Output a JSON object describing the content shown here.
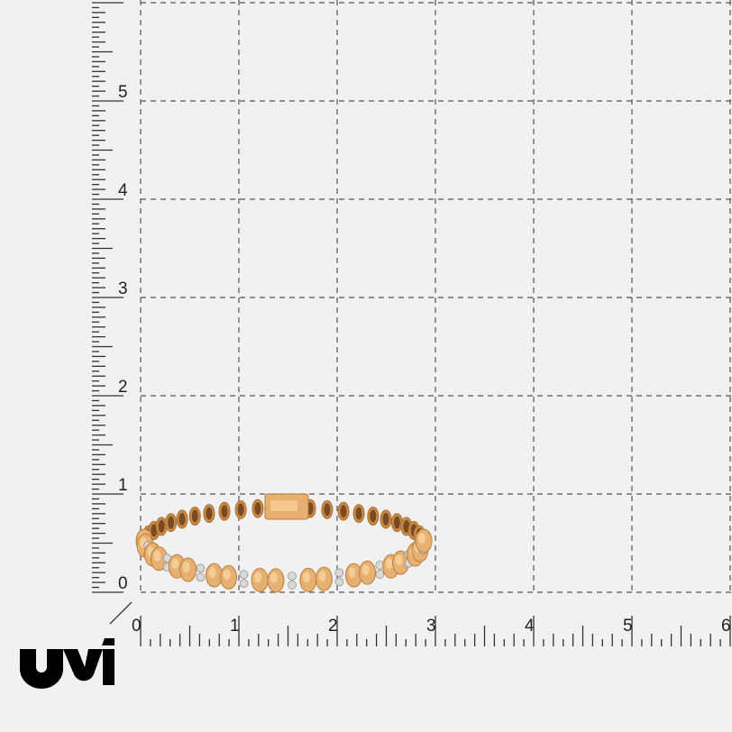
{
  "brand": {
    "logo_text": "UVI",
    "logo_color": "#000000"
  },
  "vertical_ruler": {
    "labels": [
      "0",
      "1",
      "2",
      "3",
      "4",
      "5"
    ],
    "subdivisions_per_unit": 20
  },
  "horizontal_ruler": {
    "labels": [
      "0",
      "1",
      "2",
      "3",
      "4",
      "5",
      "6"
    ],
    "subdivisions_per_unit": 10
  },
  "grid": {
    "line_style": "dashed",
    "line_color": "#555555"
  },
  "product": {
    "name": "gold tennis bracelet with diamonds",
    "metal_color": "#e8b070",
    "stone_color": "#d8d8d8"
  },
  "colors": {
    "background": "#f1f1f1",
    "ruler": "#333333"
  }
}
